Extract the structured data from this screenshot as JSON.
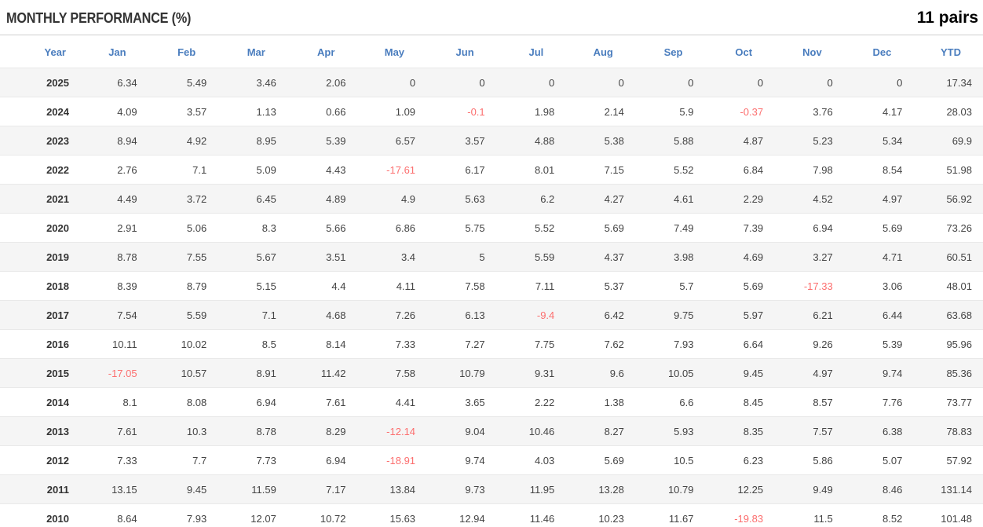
{
  "panel": {
    "title": "MONTHLY PERFORMANCE (%)",
    "pairs_label": "11 pairs"
  },
  "table": {
    "columns": [
      "Year",
      "Jan",
      "Feb",
      "Mar",
      "Apr",
      "May",
      "Jun",
      "Jul",
      "Aug",
      "Sep",
      "Oct",
      "Nov",
      "Dec",
      "YTD"
    ],
    "rows": [
      {
        "year": "2025",
        "values": [
          "6.34",
          "5.49",
          "3.46",
          "2.06",
          "0",
          "0",
          "0",
          "0",
          "0",
          "0",
          "0",
          "0",
          "17.34"
        ]
      },
      {
        "year": "2024",
        "values": [
          "4.09",
          "3.57",
          "1.13",
          "0.66",
          "1.09",
          "-0.1",
          "1.98",
          "2.14",
          "5.9",
          "-0.37",
          "3.76",
          "4.17",
          "28.03"
        ]
      },
      {
        "year": "2023",
        "values": [
          "8.94",
          "4.92",
          "8.95",
          "5.39",
          "6.57",
          "3.57",
          "4.88",
          "5.38",
          "5.88",
          "4.87",
          "5.23",
          "5.34",
          "69.9"
        ]
      },
      {
        "year": "2022",
        "values": [
          "2.76",
          "7.1",
          "5.09",
          "4.43",
          "-17.61",
          "6.17",
          "8.01",
          "7.15",
          "5.52",
          "6.84",
          "7.98",
          "8.54",
          "51.98"
        ]
      },
      {
        "year": "2021",
        "values": [
          "4.49",
          "3.72",
          "6.45",
          "4.89",
          "4.9",
          "5.63",
          "6.2",
          "4.27",
          "4.61",
          "2.29",
          "4.52",
          "4.97",
          "56.92"
        ]
      },
      {
        "year": "2020",
        "values": [
          "2.91",
          "5.06",
          "8.3",
          "5.66",
          "6.86",
          "5.75",
          "5.52",
          "5.69",
          "7.49",
          "7.39",
          "6.94",
          "5.69",
          "73.26"
        ]
      },
      {
        "year": "2019",
        "values": [
          "8.78",
          "7.55",
          "5.67",
          "3.51",
          "3.4",
          "5",
          "5.59",
          "4.37",
          "3.98",
          "4.69",
          "3.27",
          "4.71",
          "60.51"
        ]
      },
      {
        "year": "2018",
        "values": [
          "8.39",
          "8.79",
          "5.15",
          "4.4",
          "4.11",
          "7.58",
          "7.11",
          "5.37",
          "5.7",
          "5.69",
          "-17.33",
          "3.06",
          "48.01"
        ]
      },
      {
        "year": "2017",
        "values": [
          "7.54",
          "5.59",
          "7.1",
          "4.68",
          "7.26",
          "6.13",
          "-9.4",
          "6.42",
          "9.75",
          "5.97",
          "6.21",
          "6.44",
          "63.68"
        ]
      },
      {
        "year": "2016",
        "values": [
          "10.11",
          "10.02",
          "8.5",
          "8.14",
          "7.33",
          "7.27",
          "7.75",
          "7.62",
          "7.93",
          "6.64",
          "9.26",
          "5.39",
          "95.96"
        ]
      },
      {
        "year": "2015",
        "values": [
          "-17.05",
          "10.57",
          "8.91",
          "11.42",
          "7.58",
          "10.79",
          "9.31",
          "9.6",
          "10.05",
          "9.45",
          "4.97",
          "9.74",
          "85.36"
        ]
      },
      {
        "year": "2014",
        "values": [
          "8.1",
          "8.08",
          "6.94",
          "7.61",
          "4.41",
          "3.65",
          "2.22",
          "1.38",
          "6.6",
          "8.45",
          "8.57",
          "7.76",
          "73.77"
        ]
      },
      {
        "year": "2013",
        "values": [
          "7.61",
          "10.3",
          "8.78",
          "8.29",
          "-12.14",
          "9.04",
          "10.46",
          "8.27",
          "5.93",
          "8.35",
          "7.57",
          "6.38",
          "78.83"
        ]
      },
      {
        "year": "2012",
        "values": [
          "7.33",
          "7.7",
          "7.73",
          "6.94",
          "-18.91",
          "9.74",
          "4.03",
          "5.69",
          "10.5",
          "6.23",
          "5.86",
          "5.07",
          "57.92"
        ]
      },
      {
        "year": "2011",
        "values": [
          "13.15",
          "9.45",
          "11.59",
          "7.17",
          "13.84",
          "9.73",
          "11.95",
          "13.28",
          "10.79",
          "12.25",
          "9.49",
          "8.46",
          "131.14"
        ]
      },
      {
        "year": "2010",
        "values": [
          "8.64",
          "7.93",
          "12.07",
          "10.72",
          "15.63",
          "12.94",
          "11.46",
          "10.23",
          "11.67",
          "-19.83",
          "11.5",
          "8.52",
          "101.48"
        ]
      }
    ]
  },
  "colors": {
    "header_text": "#4a7dbe",
    "negative_value": "#fc6e6e",
    "positive_value": "#444444",
    "row_stripe": "#f5f5f5"
  }
}
